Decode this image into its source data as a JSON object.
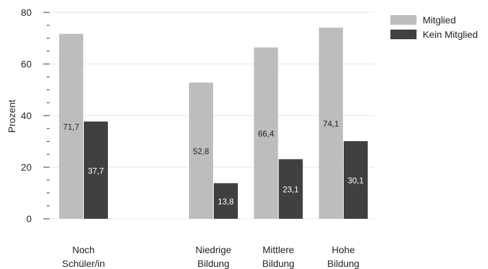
{
  "chart_data": {
    "type": "bar",
    "categories": [
      [
        "Noch",
        "Schüler/in"
      ],
      [
        "",
        ""
      ],
      [
        "Niedrige",
        "Bildung"
      ],
      [
        "Mittlere",
        "Bildung"
      ],
      [
        "Hohe",
        "Bildung"
      ]
    ],
    "series": [
      {
        "name": "Mitglied",
        "values": [
          71.7,
          null,
          52.8,
          66.4,
          74.1
        ],
        "labels": [
          "71,7",
          "",
          "52,8",
          "66,4",
          "74,1"
        ]
      },
      {
        "name": "Kein Mitglied",
        "values": [
          37.7,
          null,
          13.8,
          23.1,
          30.1
        ],
        "labels": [
          "37,7",
          "",
          "13,8",
          "23,1",
          "30,1"
        ]
      }
    ],
    "ylabel": "Prozent",
    "ylim": [
      0,
      80
    ],
    "yticks": [
      0,
      20,
      40,
      60,
      80
    ],
    "grid": true,
    "legend": "top-right",
    "colors": {
      "Mitglied": "#bdbdbd",
      "Kein Mitglied": "#404040",
      "label_dark": "#222222",
      "label_light": "#ffffff"
    }
  }
}
